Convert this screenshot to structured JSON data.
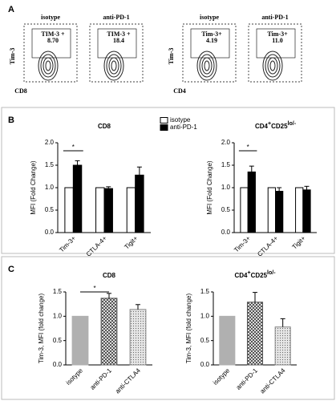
{
  "flow_panel": {
    "label": "A",
    "left": {
      "y_label": "Tim-3",
      "x_label": "CD8",
      "plots": [
        {
          "title": "isotype",
          "gate": "TIM-3 +",
          "value": "8.70"
        },
        {
          "title": "anti-PD-1",
          "gate": "TIM-3 +",
          "value": "18.4"
        }
      ]
    },
    "right": {
      "y_label": "Tim-3",
      "x_label": "CD4",
      "plots": [
        {
          "title": "isotype",
          "gate": "Tim-3+",
          "value": "4.19"
        },
        {
          "title": "anti-PD-1",
          "gate": "Tim-3+",
          "value": "11.0"
        }
      ]
    }
  },
  "panel_labels": [
    "B",
    "C"
  ],
  "chart_data": [
    {
      "type": "grouped-bar",
      "title_parts": [
        {
          "text": "CD8"
        }
      ],
      "y_label": "MFI (Fold Change)",
      "annotation": "*",
      "categories": [
        "Tim-3+",
        "CTLA-4+",
        "Tigit+"
      ],
      "series": [
        {
          "name": "isotype",
          "color": "#ffffff",
          "values": [
            1,
            1,
            1
          ]
        },
        {
          "name": "anti-PD-1",
          "color": "#000000",
          "values": [
            1.5,
            0.98,
            1.28
          ],
          "errors": [
            0.1,
            0.04,
            0.18
          ]
        }
      ],
      "ylim": [
        0,
        2
      ],
      "yticks": [
        {
          "value": 0,
          "label": "0.0"
        },
        {
          "value": 0.5,
          "label": "0.5"
        },
        {
          "value": 1,
          "label": "1.0"
        },
        {
          "value": 1.5,
          "label": "1.5"
        },
        {
          "value": 2,
          "label": "2.0"
        }
      ]
    },
    {
      "type": "grouped-bar",
      "title_parts": [
        {
          "text": "CD4"
        },
        {
          "text": "+",
          "sup": true
        },
        {
          "text": "CD25"
        },
        {
          "text": "lo/-",
          "sup": true
        }
      ],
      "y_label": "MFI (Fold Change)",
      "annotation": "*",
      "categories": [
        "Tim-3+",
        "CTLA-4+",
        "Tigit+"
      ],
      "series": [
        {
          "name": "isotype",
          "color": "#ffffff",
          "values": [
            1,
            1,
            1
          ]
        },
        {
          "name": "anti-PD-1",
          "color": "#000000",
          "values": [
            1.35,
            0.92,
            0.95
          ],
          "errors": [
            0.13,
            0.08,
            0.08
          ]
        }
      ],
      "ylim": [
        0,
        2
      ],
      "yticks": [
        {
          "value": 0,
          "label": "0.0"
        },
        {
          "value": 0.5,
          "label": "0.5"
        },
        {
          "value": 1,
          "label": "1.0"
        },
        {
          "value": 1.5,
          "label": "1.5"
        },
        {
          "value": 2,
          "label": "2.0"
        }
      ]
    },
    {
      "type": "bar",
      "title_parts": [
        {
          "text": "CD8"
        }
      ],
      "y_label": "Tim-3, MFI (fold change)",
      "annotation": "*",
      "categories": [
        "isotype",
        "anti-PD-1",
        "anti-CTLA4"
      ],
      "values": [
        1,
        1.37,
        1.14
      ],
      "errors": [
        0,
        0.1,
        0.1
      ],
      "patterns": [
        "solid",
        "crosshatch",
        "dots"
      ],
      "colors": [
        "#b0b0b0",
        "#555555",
        "#888888"
      ],
      "ylim": [
        0,
        1.5
      ],
      "yticks": [
        {
          "value": 0,
          "label": "0.0"
        },
        {
          "value": 0.5,
          "label": "0.5"
        },
        {
          "value": 1,
          "label": "1.0"
        },
        {
          "value": 1.5,
          "label": "1.5"
        }
      ]
    },
    {
      "type": "bar",
      "title_parts": [
        {
          "text": "CD4"
        },
        {
          "text": "+",
          "sup": true
        },
        {
          "text": "CD25"
        },
        {
          "text": "lo/-",
          "sup": true
        }
      ],
      "y_label": "Tim-3, MFI (fold change)",
      "categories": [
        "isotype",
        "anti-PD-1",
        "anti-CTLA4"
      ],
      "values": [
        1,
        1.29,
        0.78
      ],
      "errors": [
        0,
        0.2,
        0.17
      ],
      "patterns": [
        "solid",
        "crosshatch",
        "dots"
      ],
      "colors": [
        "#b0b0b0",
        "#555555",
        "#888888"
      ],
      "ylim": [
        0,
        1.5
      ],
      "yticks": [
        {
          "value": 0,
          "label": "0.0"
        },
        {
          "value": 0.5,
          "label": "0.5"
        },
        {
          "value": 1,
          "label": "1.0"
        },
        {
          "value": 1.5,
          "label": "1.5"
        }
      ]
    }
  ]
}
